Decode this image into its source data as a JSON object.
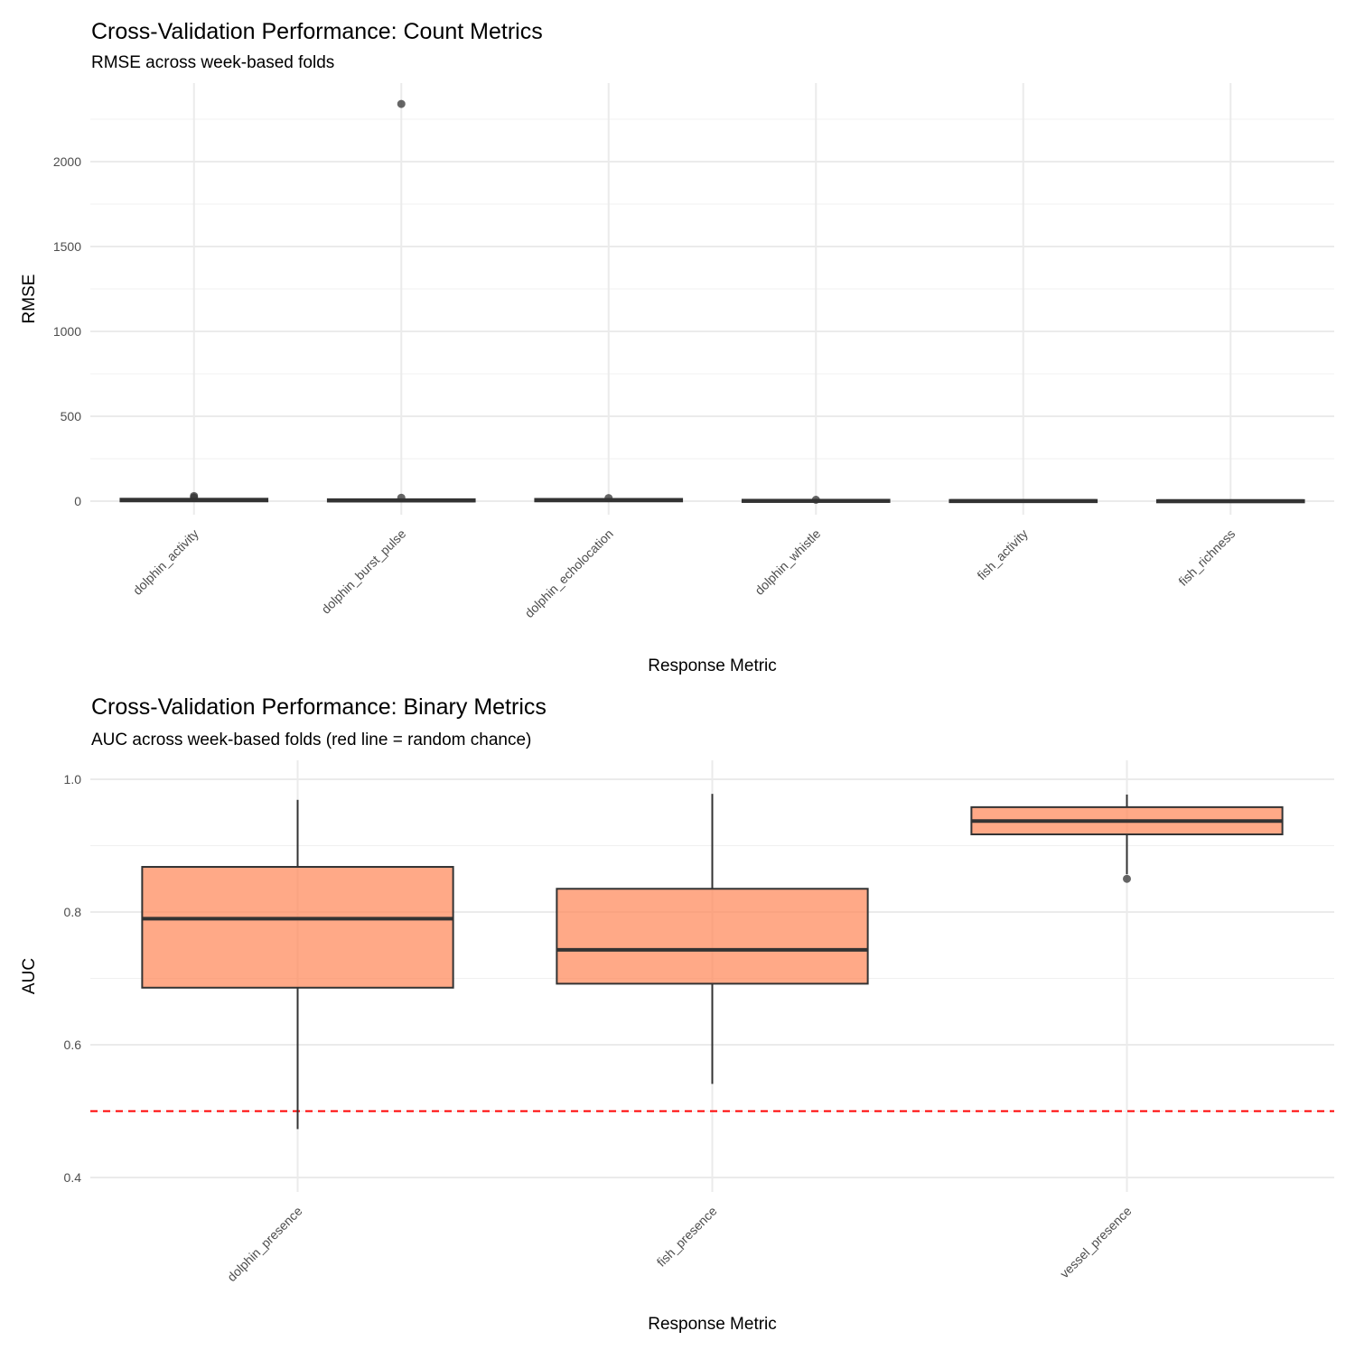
{
  "chart_data": [
    {
      "type": "box",
      "title": "Cross-Validation Performance: Count Metrics",
      "subtitle": "RMSE across week-based folds",
      "xlabel": "Response Metric",
      "ylabel": "RMSE",
      "ylim": [
        -50,
        2450
      ],
      "yticks": [
        0,
        500,
        1000,
        1500,
        2000
      ],
      "categories": [
        "dolphin_activity",
        "dolphin_burst_pulse",
        "dolphin_echolocation",
        "dolphin_whistle",
        "fish_activity",
        "fish_richness"
      ],
      "boxes": [
        {
          "min": 2,
          "q1": 4,
          "median": 6,
          "q3": 9,
          "max": 14,
          "outliers": [
            30,
            22
          ]
        },
        {
          "min": 1,
          "q1": 3,
          "median": 4,
          "q3": 6,
          "max": 10,
          "outliers": [
            2340,
            20
          ]
        },
        {
          "min": 2,
          "q1": 4,
          "median": 6,
          "q3": 8,
          "max": 12,
          "outliers": [
            18
          ]
        },
        {
          "min": 0.5,
          "q1": 1,
          "median": 2,
          "q3": 3,
          "max": 5,
          "outliers": [
            8
          ]
        },
        {
          "min": 0.5,
          "q1": 1,
          "median": 1.5,
          "q3": 2,
          "max": 3,
          "outliers": []
        },
        {
          "min": 0.2,
          "q1": 0.5,
          "median": 0.8,
          "q3": 1,
          "max": 1.5,
          "outliers": []
        }
      ]
    },
    {
      "type": "box",
      "title": "Cross-Validation Performance: Binary Metrics",
      "subtitle": "AUC across week-based folds (red line = random chance)",
      "xlabel": "Response Metric",
      "ylabel": "AUC",
      "ylim": [
        0.37,
        1.03
      ],
      "yticks": [
        0.4,
        0.6,
        0.8,
        1.0
      ],
      "reference_line": 0.5,
      "categories": [
        "dolphin_presence",
        "fish_presence",
        "vessel_presence"
      ],
      "boxes": [
        {
          "min": 0.473,
          "q1": 0.686,
          "median": 0.79,
          "q3": 0.868,
          "max": 0.969,
          "outliers": []
        },
        {
          "min": 0.541,
          "q1": 0.692,
          "median": 0.743,
          "q3": 0.835,
          "max": 0.978,
          "outliers": []
        },
        {
          "min": 0.857,
          "q1": 0.917,
          "median": 0.937,
          "q3": 0.958,
          "max": 0.977,
          "outliers": [
            0.85
          ]
        }
      ]
    }
  ],
  "colors": {
    "fill": "#FF8C5F",
    "refline": "#FF0000"
  }
}
